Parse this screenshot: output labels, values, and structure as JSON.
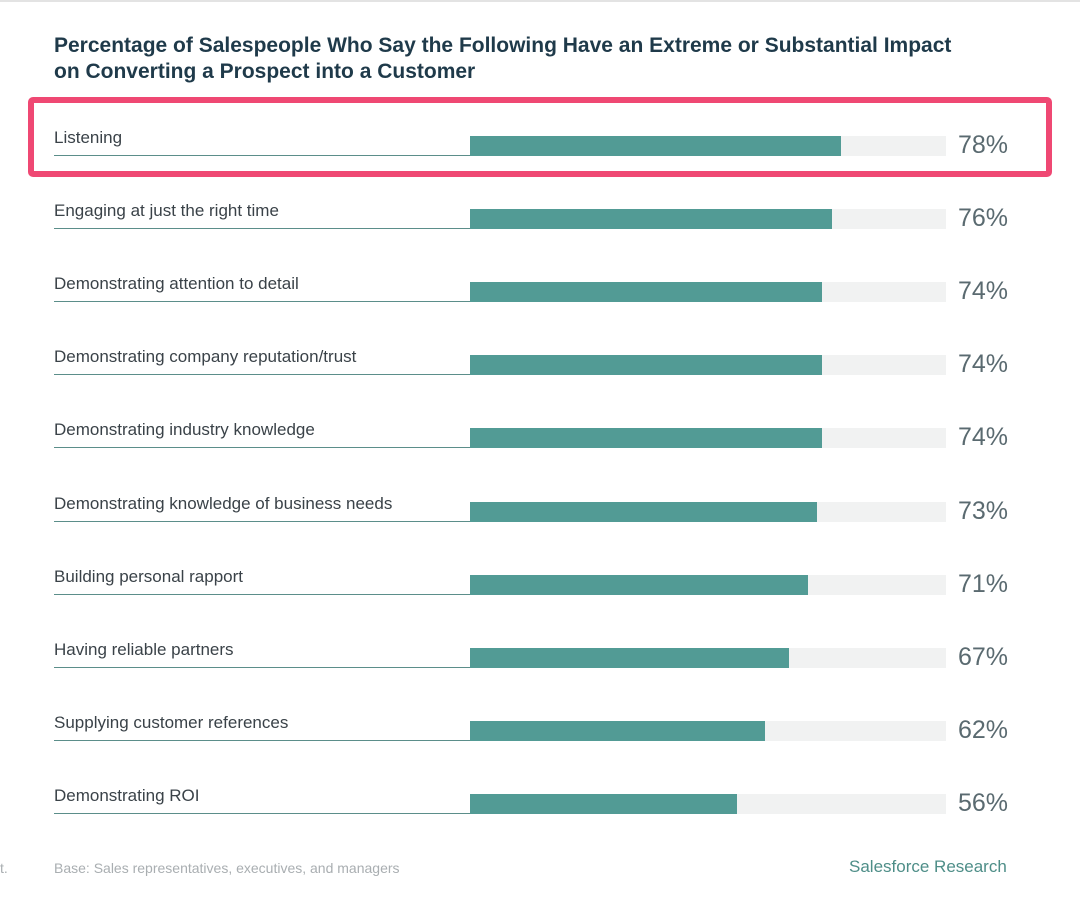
{
  "chart_data": {
    "type": "bar",
    "orientation": "horizontal",
    "title": "Percentage of Salespeople Who Say the Following Have an Extreme or Substantial Impact on Converting a Prospect into a Customer",
    "categories": [
      "Listening",
      "Engaging at just the right time",
      "Demonstrating attention to detail",
      "Demonstrating company reputation/trust",
      "Demonstrating industry knowledge",
      "Demonstrating knowledge of business needs",
      "Building personal rapport",
      "Having reliable partners",
      "Supplying customer references",
      "Demonstrating ROI"
    ],
    "values": [
      78,
      76,
      74,
      74,
      74,
      73,
      71,
      67,
      62,
      56
    ],
    "value_labels": [
      "78%",
      "76%",
      "74%",
      "74%",
      "74%",
      "73%",
      "71%",
      "67%",
      "62%",
      "56%"
    ],
    "xlim": [
      0,
      100
    ],
    "highlighted_category": "Listening",
    "colors": {
      "bar": "#529b95",
      "track": "#f1f2f2",
      "highlight": "#ef4873"
    }
  },
  "footer": {
    "edge_text": "t.",
    "base_note": "Base: Sales representatives, executives, and managers",
    "source": "Salesforce Research"
  }
}
